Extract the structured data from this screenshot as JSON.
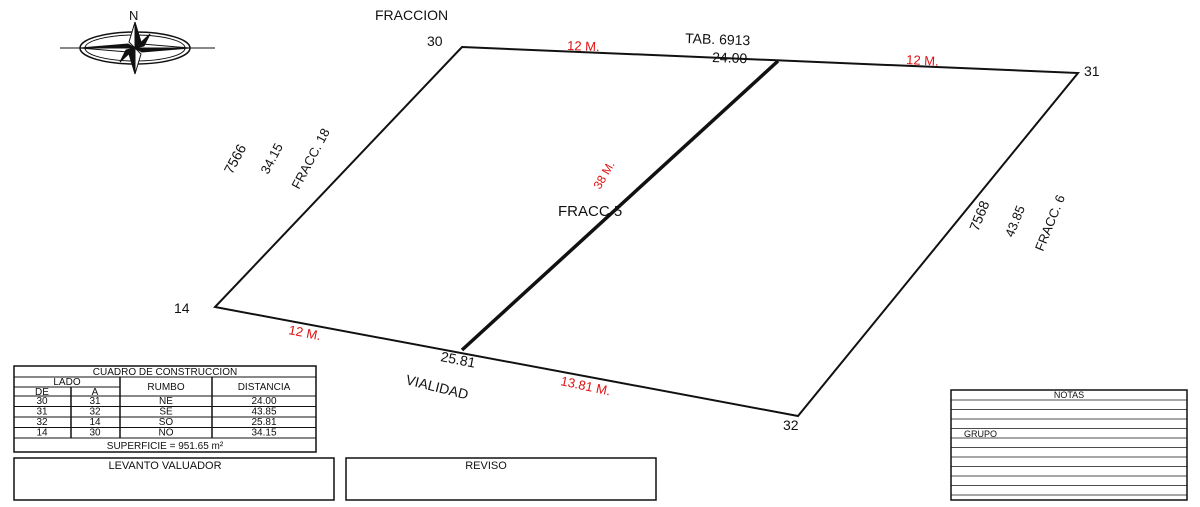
{
  "colors": {
    "lines": "#111111",
    "measurements": "#e01010",
    "background": "#ffffff"
  },
  "compass": {
    "north_label": "N",
    "icon": "compass-rose-icon"
  },
  "title": "FRACCION",
  "lot": {
    "label": "FRACC  5",
    "vertices": [
      "30",
      "31",
      "32",
      "14"
    ],
    "top": {
      "tab": "TAB. 6913",
      "length": "24.00",
      "left_segment": "12 M.",
      "right_segment": "12 M."
    },
    "left": {
      "id": "7566",
      "length": "34.15",
      "neighbor": "FRACC. 18"
    },
    "right": {
      "id": "7568",
      "length": "43.85",
      "neighbor": "FRACC. 6"
    },
    "bottom": {
      "length": "25.81",
      "street": "VIALIDAD",
      "left_segment": "12 M.",
      "right_segment": "13.81 M."
    },
    "division": "38 M."
  },
  "construction_table": {
    "title": "CUADRO DE CONSTRUCCION",
    "headers": {
      "lado": "LADO",
      "de": "DE",
      "a": "A",
      "rumbo": "RUMBO",
      "distancia": "DISTANCIA"
    },
    "rows": [
      [
        "30",
        "31",
        "NE",
        "24.00"
      ],
      [
        "31",
        "32",
        "SE",
        "43.85"
      ],
      [
        "32",
        "14",
        "SO",
        "25.81"
      ],
      [
        "14",
        "30",
        "NO",
        "34.15"
      ]
    ],
    "superficie": "SUPERFICIE = 951.65 m²"
  },
  "signatures": {
    "levanto": "LEVANTO VALUADOR",
    "reviso": "REVISO"
  },
  "notes": {
    "title": "NOTAS",
    "grupo": "GRUPO"
  }
}
